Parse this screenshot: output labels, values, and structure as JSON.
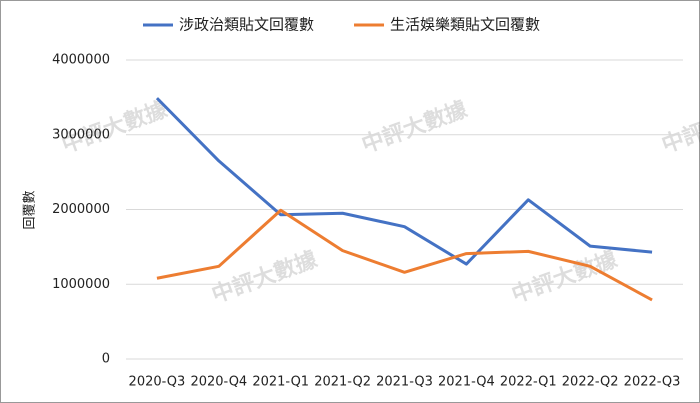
{
  "chart_data": {
    "type": "line",
    "categories": [
      "2020-Q3",
      "2020-Q4",
      "2021-Q1",
      "2021-Q2",
      "2021-Q3",
      "2021-Q4",
      "2022-Q1",
      "2022-Q2",
      "2022-Q3"
    ],
    "series": [
      {
        "name": "涉政治類貼文回覆數",
        "color": "#4472c4",
        "values": [
          3490000,
          2650000,
          1930000,
          1950000,
          1770000,
          1270000,
          2130000,
          1510000,
          1430000
        ]
      },
      {
        "name": "生活娛樂類貼文回覆數",
        "color": "#ed7d31",
        "values": [
          1080000,
          1240000,
          1990000,
          1450000,
          1160000,
          1410000,
          1440000,
          1240000,
          790000
        ]
      }
    ],
    "ylabel": "回覆數",
    "ylim": [
      0,
      4000000
    ],
    "yticks": [
      0,
      1000000,
      2000000,
      3000000,
      4000000
    ],
    "grid": true,
    "watermark": "中評大數據"
  }
}
